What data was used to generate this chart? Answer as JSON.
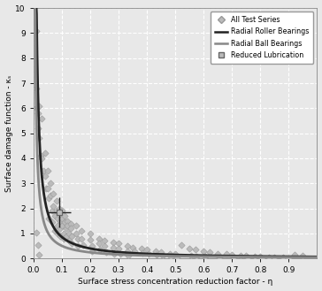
{
  "xlabel": "Surface stress concentration reduction factor - η",
  "ylabel": "Surface damage function - κₛ",
  "xlim": [
    0,
    1.0
  ],
  "ylim": [
    0,
    10
  ],
  "xticks": [
    0,
    0.1,
    0.2,
    0.3,
    0.4,
    0.5,
    0.6,
    0.7,
    0.8,
    0.9
  ],
  "yticks": [
    0,
    1,
    2,
    3,
    4,
    5,
    6,
    7,
    8,
    9,
    10
  ],
  "background_color": "#e8e8e8",
  "grid_color": "#ffffff",
  "scatter_color": "#bbbbbb",
  "scatter_edge_color": "#999999",
  "roller_line_color": "#222222",
  "ball_line_color": "#888888",
  "reduced_lub_color": "#bbbbbb",
  "reduced_lub_edge_color": "#666666",
  "roller_A": 0.068,
  "roller_n": 1.1,
  "ball_A": 0.045,
  "ball_n": 1.05,
  "scatter_points": [
    [
      0.01,
      9.1
    ],
    [
      0.01,
      6.8
    ],
    [
      0.01,
      6.0
    ],
    [
      0.015,
      5.8
    ],
    [
      0.015,
      5.2
    ],
    [
      0.02,
      6.1
    ],
    [
      0.02,
      4.8
    ],
    [
      0.025,
      4.1
    ],
    [
      0.03,
      5.6
    ],
    [
      0.03,
      4.0
    ],
    [
      0.035,
      3.5
    ],
    [
      0.04,
      4.2
    ],
    [
      0.04,
      3.3
    ],
    [
      0.045,
      2.8
    ],
    [
      0.05,
      3.5
    ],
    [
      0.05,
      2.8
    ],
    [
      0.055,
      2.4
    ],
    [
      0.055,
      1.6
    ],
    [
      0.06,
      3.0
    ],
    [
      0.06,
      2.5
    ],
    [
      0.065,
      1.9
    ],
    [
      0.065,
      1.45
    ],
    [
      0.07,
      2.6
    ],
    [
      0.07,
      2.1
    ],
    [
      0.075,
      1.7
    ],
    [
      0.075,
      1.1
    ],
    [
      0.08,
      2.3
    ],
    [
      0.08,
      1.9
    ],
    [
      0.085,
      1.6
    ],
    [
      0.085,
      1.3
    ],
    [
      0.085,
      1.0
    ],
    [
      0.09,
      2.0
    ],
    [
      0.09,
      1.75
    ],
    [
      0.095,
      1.5
    ],
    [
      0.095,
      1.2
    ],
    [
      0.095,
      0.9
    ],
    [
      0.1,
      1.9
    ],
    [
      0.1,
      1.6
    ],
    [
      0.1,
      1.3
    ],
    [
      0.105,
      1.0
    ],
    [
      0.105,
      0.8
    ],
    [
      0.11,
      1.7
    ],
    [
      0.11,
      1.45
    ],
    [
      0.115,
      1.2
    ],
    [
      0.115,
      0.9
    ],
    [
      0.12,
      1.5
    ],
    [
      0.12,
      1.3
    ],
    [
      0.125,
      1.0
    ],
    [
      0.125,
      0.7
    ],
    [
      0.13,
      1.4
    ],
    [
      0.13,
      1.2
    ],
    [
      0.135,
      0.9
    ],
    [
      0.135,
      0.6
    ],
    [
      0.15,
      1.3
    ],
    [
      0.15,
      1.0
    ],
    [
      0.155,
      0.8
    ],
    [
      0.155,
      0.5
    ],
    [
      0.17,
      1.1
    ],
    [
      0.17,
      0.8
    ],
    [
      0.175,
      0.55
    ],
    [
      0.2,
      1.0
    ],
    [
      0.2,
      0.75
    ],
    [
      0.205,
      0.5
    ],
    [
      0.205,
      0.3
    ],
    [
      0.23,
      0.8
    ],
    [
      0.23,
      0.6
    ],
    [
      0.235,
      0.35
    ],
    [
      0.25,
      0.7
    ],
    [
      0.25,
      0.5
    ],
    [
      0.255,
      0.25
    ],
    [
      0.28,
      0.65
    ],
    [
      0.28,
      0.45
    ],
    [
      0.285,
      0.2
    ],
    [
      0.3,
      0.6
    ],
    [
      0.3,
      0.4
    ],
    [
      0.305,
      0.18
    ],
    [
      0.33,
      0.5
    ],
    [
      0.33,
      0.3
    ],
    [
      0.335,
      0.12
    ],
    [
      0.35,
      0.45
    ],
    [
      0.355,
      0.28
    ],
    [
      0.38,
      0.4
    ],
    [
      0.385,
      0.22
    ],
    [
      0.4,
      0.35
    ],
    [
      0.405,
      0.18
    ],
    [
      0.43,
      0.3
    ],
    [
      0.435,
      0.15
    ],
    [
      0.45,
      0.25
    ],
    [
      0.455,
      0.12
    ],
    [
      0.48,
      0.2
    ],
    [
      0.485,
      0.08
    ],
    [
      0.5,
      0.18
    ],
    [
      0.505,
      0.06
    ],
    [
      0.52,
      0.55
    ],
    [
      0.55,
      0.4
    ],
    [
      0.555,
      0.1
    ],
    [
      0.57,
      0.35
    ],
    [
      0.575,
      0.08
    ],
    [
      0.6,
      0.3
    ],
    [
      0.605,
      0.07
    ],
    [
      0.62,
      0.25
    ],
    [
      0.65,
      0.2
    ],
    [
      0.655,
      0.05
    ],
    [
      0.68,
      0.18
    ],
    [
      0.7,
      0.15
    ],
    [
      0.705,
      0.04
    ],
    [
      0.73,
      0.12
    ],
    [
      0.75,
      0.1
    ],
    [
      0.755,
      0.03
    ],
    [
      0.78,
      0.08
    ],
    [
      0.8,
      0.07
    ],
    [
      0.805,
      0.02
    ],
    [
      0.83,
      0.05
    ],
    [
      0.85,
      0.04
    ],
    [
      0.88,
      0.03
    ],
    [
      0.9,
      0.02
    ],
    [
      0.92,
      0.15
    ],
    [
      0.95,
      0.1
    ],
    [
      0.01,
      1.05
    ],
    [
      0.015,
      0.55
    ],
    [
      0.02,
      0.15
    ]
  ],
  "reduced_lub_point": [
    0.09,
    1.85
  ],
  "reduced_lub_xerr": 0.04,
  "reduced_lub_yerr": 0.6,
  "legend_entries": [
    "All Test Series",
    "Radial Roller Bearings",
    "Radial Ball Bearings",
    "Reduced Lubrication"
  ]
}
